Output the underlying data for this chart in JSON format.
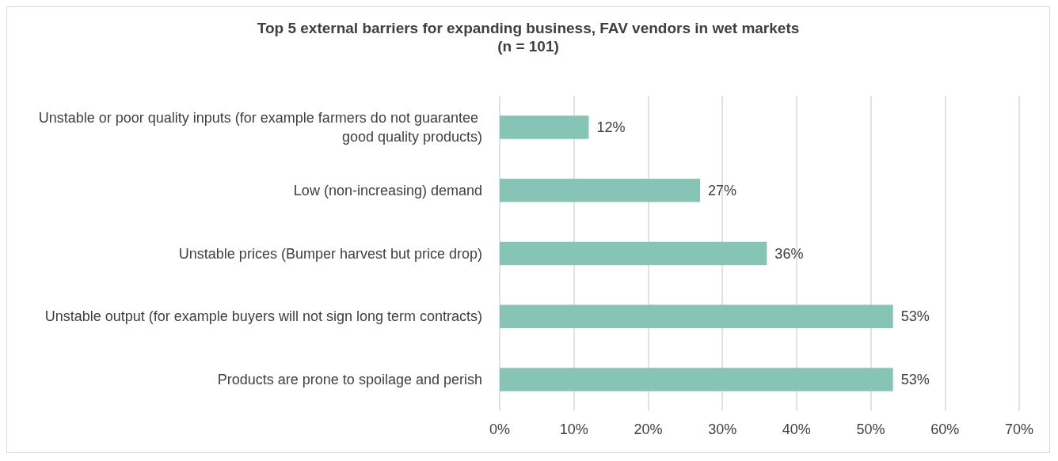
{
  "chart_data": {
    "type": "bar",
    "orientation": "horizontal",
    "title": "Top 5 external barriers for expanding business, FAV vendors in wet markets",
    "subtitle": "(n = 101)",
    "categories": [
      "Unstable or poor quality inputs (for example farmers do not guarantee good quality products)",
      "Low (non-increasing) demand",
      "Unstable prices (Bumper harvest but price drop)",
      "Unstable output (for example buyers will not sign long term contracts)",
      "Products are prone to spoilage and perish"
    ],
    "values": [
      12,
      27,
      36,
      53,
      53
    ],
    "value_labels": [
      "12%",
      "27%",
      "36%",
      "53%",
      "53%"
    ],
    "color": "#86c5b6",
    "xlim": [
      0,
      70
    ],
    "xticks": [
      {
        "value": 0,
        "label": "0%"
      },
      {
        "value": 10,
        "label": "10%"
      },
      {
        "value": 20,
        "label": "20%"
      },
      {
        "value": 30,
        "label": "30%"
      },
      {
        "value": 40,
        "label": "40%"
      },
      {
        "value": 50,
        "label": "50%"
      },
      {
        "value": 60,
        "label": "60%"
      },
      {
        "value": 70,
        "label": "70%"
      }
    ],
    "grid": "x"
  }
}
